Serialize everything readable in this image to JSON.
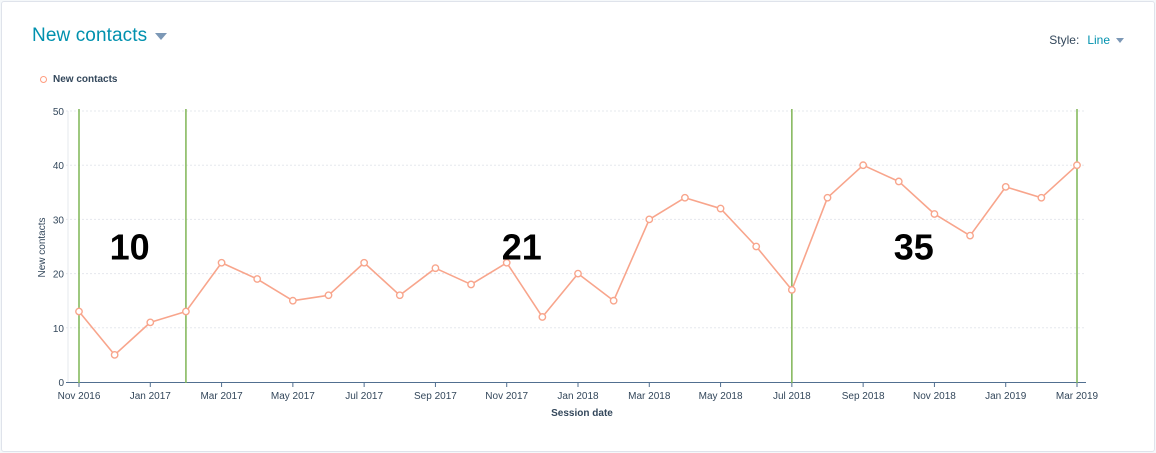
{
  "header": {
    "title": "New contacts",
    "style_label": "Style:",
    "style_value": "Line"
  },
  "legend": {
    "label": "New contacts"
  },
  "colors": {
    "line": "#f8a58c",
    "accent": "#0091ae",
    "divider": "#7fb555",
    "grid": "#e5e8ed",
    "axis": "#516f90"
  },
  "chart_data": {
    "type": "line",
    "xlabel": "Session date",
    "ylabel": "New contacts",
    "ylim": [
      0,
      50
    ],
    "yticks": [
      0,
      10,
      20,
      30,
      40,
      50
    ],
    "grid": true,
    "legend_position": "top-left",
    "x_tick_labels": [
      "Nov 2016",
      "Jan 2017",
      "Mar 2017",
      "May 2017",
      "Jul 2017",
      "Sep 2017",
      "Nov 2017",
      "Jan 2018",
      "Mar 2018",
      "May 2018",
      "Jul 2018",
      "Sep 2018",
      "Nov 2018",
      "Jan 2019",
      "Mar 2019"
    ],
    "x": [
      "Nov 2016",
      "Dec 2016",
      "Jan 2017",
      "Feb 2017",
      "Mar 2017",
      "Apr 2017",
      "May 2017",
      "Jun 2017",
      "Jul 2017",
      "Aug 2017",
      "Sep 2017",
      "Oct 2017",
      "Nov 2017",
      "Dec 2017",
      "Jan 2018",
      "Feb 2018",
      "Mar 2018",
      "Apr 2018",
      "May 2018",
      "Jun 2018",
      "Jul 2018",
      "Aug 2018",
      "Sep 2018",
      "Oct 2018",
      "Nov 2018",
      "Dec 2018",
      "Jan 2019",
      "Feb 2019",
      "Mar 2019"
    ],
    "series": [
      {
        "name": "New contacts",
        "values": [
          13,
          5,
          11,
          13,
          22,
          19,
          15,
          16,
          22,
          16,
          21,
          18,
          22,
          12,
          20,
          15,
          30,
          34,
          32,
          25,
          17,
          34,
          40,
          37,
          31,
          27,
          36,
          34,
          40
        ]
      }
    ],
    "divider_at": [
      "Nov 2016",
      "Feb 2017",
      "Jul 2018",
      "Mar 2019"
    ],
    "annotations": [
      {
        "text": "10",
        "at": "Dec 2016",
        "y": 25
      },
      {
        "text": "21",
        "at": "Nov 2017",
        "y": 25
      },
      {
        "text": "35",
        "at": "Oct 2018",
        "y": 25
      }
    ]
  }
}
